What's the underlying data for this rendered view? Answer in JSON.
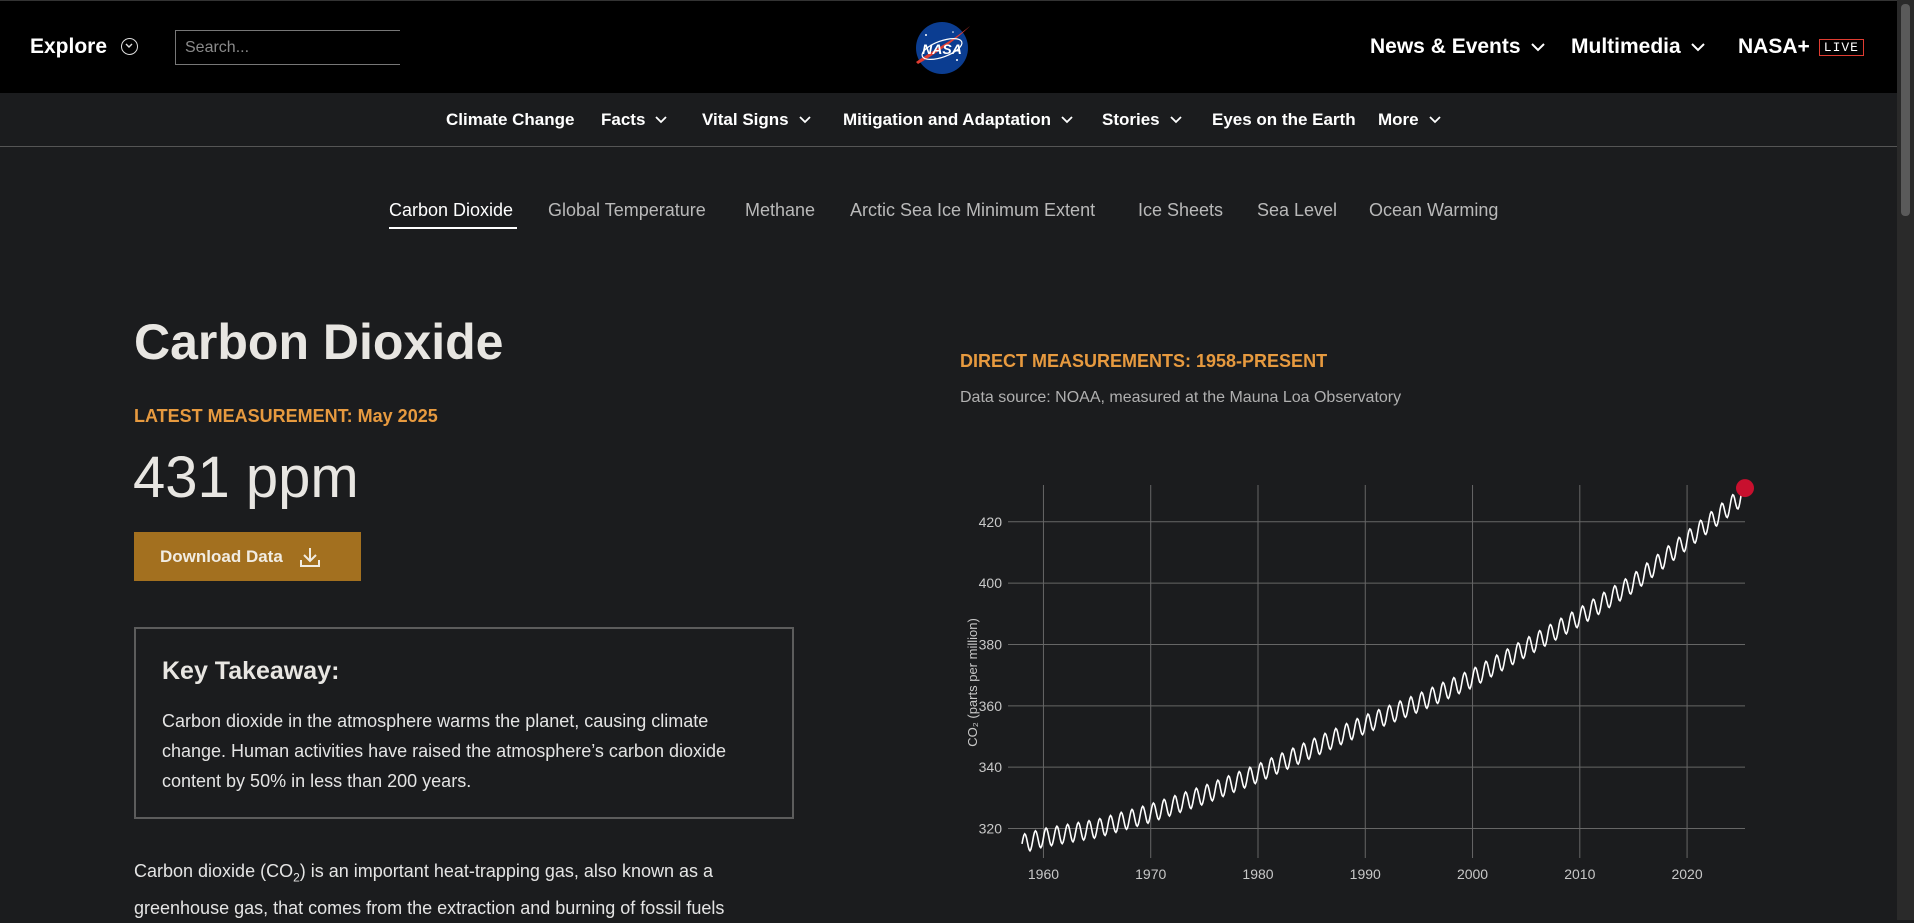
{
  "header": {
    "explore_label": "Explore",
    "search_placeholder": "Search...",
    "logo_text": "NASA",
    "nav": [
      {
        "label": "News & Events"
      },
      {
        "label": "Multimedia"
      },
      {
        "label": "NASA+",
        "badge": "LIVE"
      }
    ]
  },
  "subnav": [
    {
      "label": "Climate Change"
    },
    {
      "label": "Facts"
    },
    {
      "label": "Vital Signs"
    },
    {
      "label": "Mitigation and Adaptation"
    },
    {
      "label": "Stories"
    },
    {
      "label": "Eyes on the Earth"
    },
    {
      "label": "More"
    }
  ],
  "tabs": [
    {
      "label": "Carbon Dioxide",
      "active": true
    },
    {
      "label": "Global Temperature"
    },
    {
      "label": "Methane"
    },
    {
      "label": "Arctic Sea Ice Minimum Extent"
    },
    {
      "label": "Ice Sheets"
    },
    {
      "label": "Sea Level"
    },
    {
      "label": "Ocean Warming"
    }
  ],
  "main": {
    "title": "Carbon Dioxide",
    "latest_label": "LATEST MEASUREMENT: May 2025",
    "value": "431 ppm",
    "download_label": "Download Data",
    "takeaway": {
      "title": "Key Takeaway:",
      "body": "Carbon dioxide in the atmosphere warms the planet, causing climate change. Human activities have raised the atmosphere’s carbon dioxide content by 50% in less than 200 years."
    },
    "paragraph": {
      "before": "Carbon dioxide (CO",
      "sub": "2",
      "after": ") is an important heat-trapping gas, also known as a greenhouse gas, that comes from the extraction and burning of fossil fuels"
    }
  },
  "chart_panel": {
    "title": "DIRECT MEASUREMENTS: 1958-PRESENT",
    "source": "Data source: NOAA, measured at the Mauna Loa Observatory"
  },
  "chart_data": {
    "type": "line",
    "title": "",
    "xlabel": "",
    "ylabel": "CO₂ (parts per million)",
    "x_ticks": [
      1960,
      1970,
      1980,
      1990,
      2000,
      2010,
      2020
    ],
    "y_ticks": [
      320,
      340,
      360,
      380,
      400,
      420
    ],
    "xlim": [
      1958,
      2025.4
    ],
    "ylim": [
      313,
      432
    ],
    "grid": true,
    "series": [
      {
        "x": [
          1958,
          1960,
          1965,
          1970,
          1975,
          1980,
          1985,
          1990,
          1995,
          2000,
          2005,
          2010,
          2015,
          2020,
          2025.4
        ],
        "values": [
          315,
          317,
          320,
          325,
          331,
          338,
          346,
          354,
          361,
          369,
          379,
          389,
          400,
          414,
          429
        ]
      }
    ],
    "seasonal_amplitude_ppm": 3,
    "latest_point": {
      "x": 2025.4,
      "y": 431
    },
    "colors": {
      "line": "#ffffff",
      "grid": "#666666",
      "latest": "#c8102e"
    }
  }
}
